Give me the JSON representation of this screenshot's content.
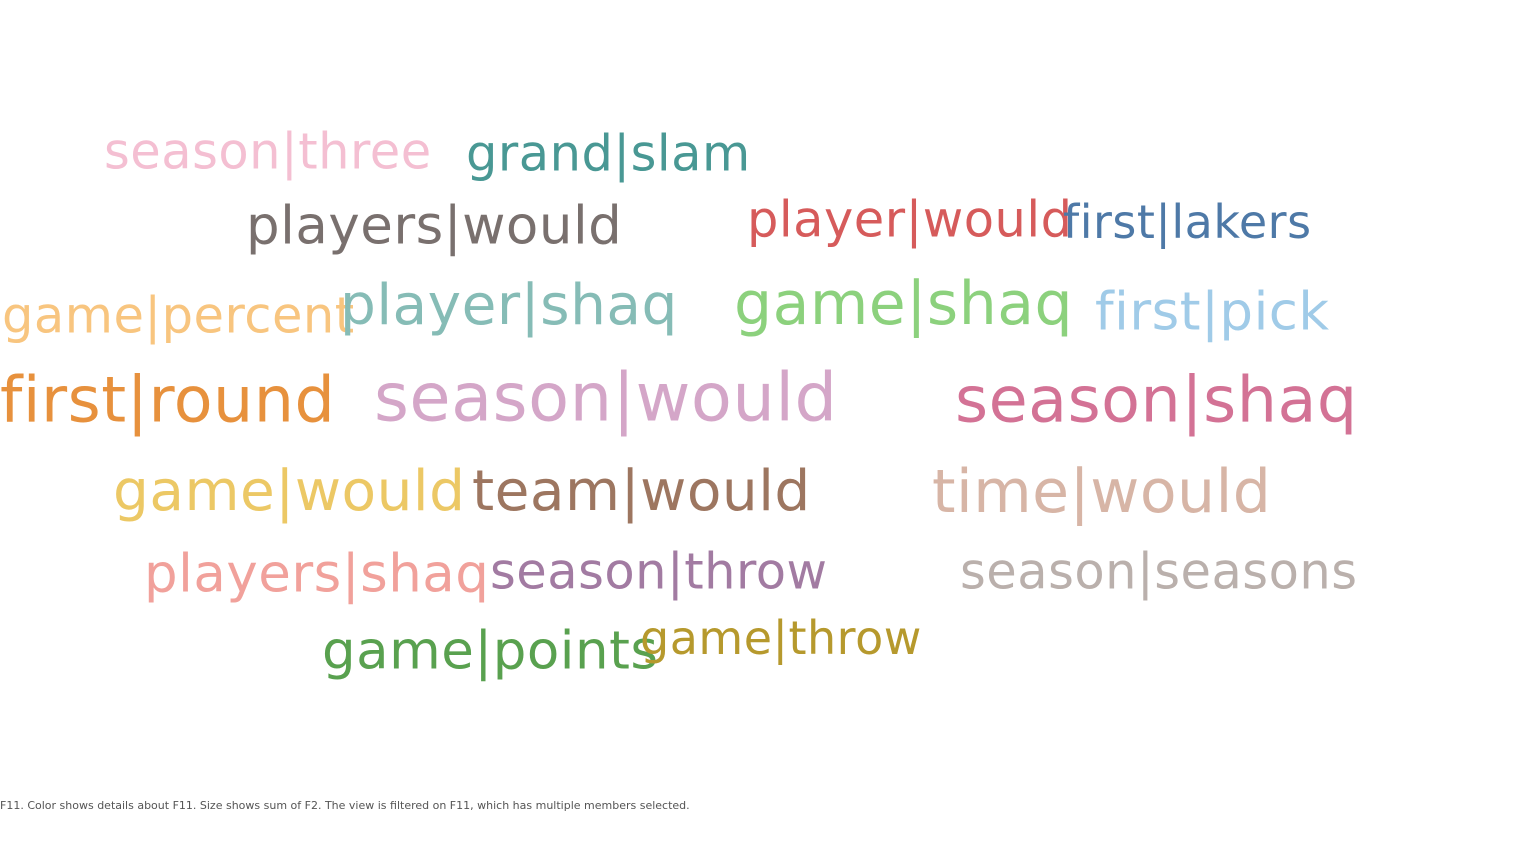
{
  "chart_data": {
    "type": "word-cloud",
    "title": "",
    "words": [
      {
        "text": "season|three",
        "size": 9,
        "color": "#f4bfd2"
      },
      {
        "text": "grand|slam",
        "size": 9,
        "color": "#499894"
      },
      {
        "text": "players|would",
        "size": 10,
        "color": "#79706e"
      },
      {
        "text": "player|would",
        "size": 9,
        "color": "#d65b5b"
      },
      {
        "text": "first|lakers",
        "size": 8,
        "color": "#4e79a7"
      },
      {
        "text": "game|percent",
        "size": 9,
        "color": "#f8c57f"
      },
      {
        "text": "player|shaq",
        "size": 11,
        "color": "#86bcb6"
      },
      {
        "text": "game|shaq",
        "size": 12,
        "color": "#8cd17d"
      },
      {
        "text": "first|pick",
        "size": 10,
        "color": "#a0cbe8"
      },
      {
        "text": "first|round",
        "size": 13,
        "color": "#e7913d"
      },
      {
        "text": "season|would",
        "size": 14,
        "color": "#d4a6c8"
      },
      {
        "text": "season|shaq",
        "size": 13,
        "color": "#d37295"
      },
      {
        "text": "game|would",
        "size": 11,
        "color": "#ecc865"
      },
      {
        "text": "team|would",
        "size": 11,
        "color": "#9d7660"
      },
      {
        "text": "time|would",
        "size": 12,
        "color": "#d7b5a6"
      },
      {
        "text": "players|shaq",
        "size": 10,
        "color": "#f1a19b"
      },
      {
        "text": "season|throw",
        "size": 9,
        "color": "#a27ba2"
      },
      {
        "text": "season|seasons",
        "size": 9,
        "color": "#bab0ac"
      },
      {
        "text": "game|points",
        "size": 10,
        "color": "#59a14f"
      },
      {
        "text": "game|throw",
        "size": 8,
        "color": "#b6992d"
      }
    ]
  },
  "caption": "F11.  Color shows details about F11.  Size shows sum of F2. The view is filtered on F11, which has multiple members selected."
}
